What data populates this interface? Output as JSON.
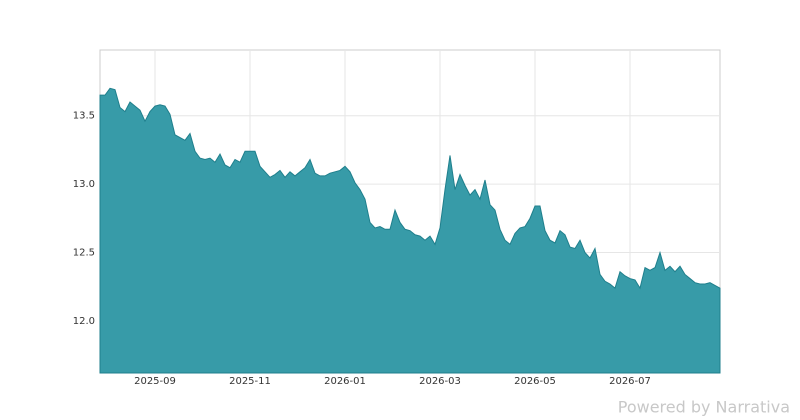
{
  "chart_data": {
    "type": "area",
    "categories": [
      null,
      null,
      null,
      null,
      null,
      null,
      null,
      null,
      null,
      null,
      null,
      "2025-09",
      null,
      null,
      null,
      null,
      null,
      null,
      null,
      null,
      null,
      null,
      null,
      null,
      null,
      null,
      null,
      null,
      null,
      null,
      "2025-11",
      null,
      null,
      null,
      null,
      null,
      null,
      null,
      null,
      null,
      null,
      null,
      null,
      null,
      null,
      null,
      null,
      null,
      null,
      "2026-01",
      null,
      null,
      null,
      null,
      null,
      null,
      null,
      null,
      null,
      null,
      null,
      null,
      null,
      null,
      null,
      null,
      null,
      null,
      "2026-03",
      null,
      null,
      null,
      null,
      null,
      null,
      null,
      null,
      null,
      null,
      null,
      null,
      null,
      null,
      null,
      null,
      null,
      null,
      "2026-05",
      null,
      null,
      null,
      null,
      null,
      null,
      null,
      null,
      null,
      null,
      null,
      null,
      null,
      null,
      null,
      null,
      null,
      null,
      "2026-07",
      null,
      null,
      null,
      null,
      null,
      null,
      null,
      null,
      null,
      null,
      null,
      null,
      null,
      null,
      null,
      null,
      null,
      null
    ],
    "values": [
      13.65,
      13.65,
      13.7,
      13.69,
      13.56,
      13.53,
      13.6,
      13.57,
      13.54,
      13.46,
      13.53,
      13.57,
      13.58,
      13.57,
      13.51,
      13.36,
      13.34,
      13.32,
      13.37,
      13.24,
      13.19,
      13.18,
      13.19,
      13.16,
      13.22,
      13.14,
      13.12,
      13.18,
      13.16,
      13.24,
      13.24,
      13.24,
      13.13,
      13.09,
      13.05,
      13.07,
      13.1,
      13.05,
      13.09,
      13.06,
      13.09,
      13.12,
      13.18,
      13.08,
      13.06,
      13.06,
      13.08,
      13.09,
      13.1,
      13.13,
      13.09,
      13.01,
      12.96,
      12.89,
      12.72,
      12.68,
      12.69,
      12.67,
      12.67,
      12.81,
      12.72,
      12.67,
      12.66,
      12.63,
      12.62,
      12.59,
      12.62,
      12.56,
      12.68,
      12.96,
      13.21,
      12.96,
      13.07,
      12.99,
      12.92,
      12.96,
      12.89,
      13.03,
      12.85,
      12.81,
      12.67,
      12.59,
      12.56,
      12.64,
      12.68,
      12.69,
      12.75,
      12.84,
      12.84,
      12.66,
      12.59,
      12.57,
      12.66,
      12.63,
      12.54,
      12.53,
      12.59,
      12.5,
      12.46,
      12.53,
      12.34,
      12.29,
      12.27,
      12.24,
      12.36,
      12.33,
      12.31,
      12.3,
      12.24,
      12.39,
      12.37,
      12.39,
      12.5,
      12.37,
      12.4,
      12.36,
      12.4,
      12.34,
      12.31,
      12.28,
      12.27,
      12.27,
      12.28,
      12.26,
      12.24
    ],
    "color": "#3399a6",
    "ylim": [
      11.62,
      13.98
    ],
    "yticks": [
      {
        "value": 12,
        "label": "12.0"
      },
      12.5,
      {
        "value": 13,
        "label": "13.0"
      },
      13.5
    ],
    "grid": true,
    "watermark": "Powered by  Narrativa"
  }
}
